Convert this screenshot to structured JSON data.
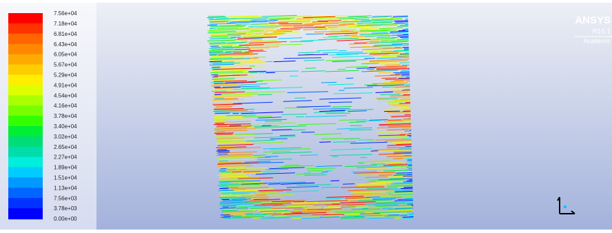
{
  "colorbar": {
    "labels": [
      "7.56e+04",
      "7.18e+04",
      "6.81e+04",
      "6.43e+04",
      "6.05e+04",
      "5.67e+04",
      "5.29e+04",
      "4.91e+04",
      "4.54e+04",
      "4.16e+04",
      "3.78e+04",
      "3.40e+04",
      "3.02e+04",
      "2.65e+04",
      "2.27e+04",
      "1.89e+04",
      "1.51e+04",
      "1.13e+04",
      "7.56e+03",
      "3.78e+03",
      "0.00e+00"
    ],
    "colors": [
      "#ff0000",
      "#ff3300",
      "#ff6600",
      "#ff8800",
      "#ffaa00",
      "#ffcc00",
      "#ffee00",
      "#ddff00",
      "#aaff00",
      "#77ff00",
      "#33ff00",
      "#00ee33",
      "#00dd77",
      "#00ddaa",
      "#00eedd",
      "#00ccff",
      "#0099ff",
      "#0066ff",
      "#0033ff",
      "#0000ff"
    ]
  },
  "brand": {
    "name": "ANSYS",
    "version": "R16.1",
    "edition": "Academic"
  }
}
